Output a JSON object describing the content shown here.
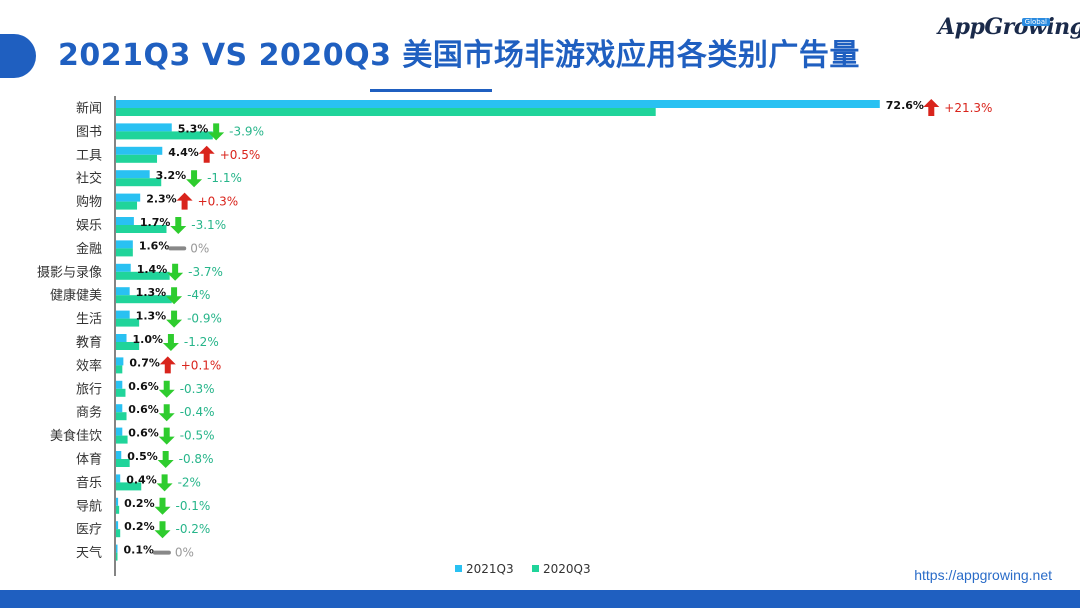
{
  "header": {
    "title": "2021Q3 VS 2020Q3 美国市场非游戏应用各类别广告量",
    "logo_text": "AppGrowing",
    "logo_badge": "Global"
  },
  "footer": {
    "url": "https://appgrowing.net"
  },
  "colors": {
    "accent": "#1f5fc0",
    "series_2021": "#29c1f2",
    "series_2020": "#20d49a",
    "up": "#d9241c",
    "down": "#2ecc2e",
    "flat": "#888888"
  },
  "chart_data": {
    "type": "bar",
    "orientation": "horizontal",
    "title": "2021Q3 VS 2020Q3 美国市场非游戏应用各类别广告量",
    "xlim": [
      0,
      73
    ],
    "legend": "bottom-center",
    "grid": false,
    "categories": [
      "新闻",
      "图书",
      "工具",
      "社交",
      "购物",
      "娱乐",
      "金融",
      "摄影与录像",
      "健康健美",
      "生活",
      "教育",
      "效率",
      "旅行",
      "商务",
      "美食佳饮",
      "体育",
      "音乐",
      "导航",
      "医疗",
      "天气"
    ],
    "series": [
      {
        "name": "2021Q3",
        "values": [
          72.6,
          5.3,
          4.4,
          3.2,
          2.3,
          1.7,
          1.6,
          1.4,
          1.3,
          1.3,
          1.0,
          0.7,
          0.6,
          0.6,
          0.6,
          0.5,
          0.4,
          0.2,
          0.2,
          0.1
        ]
      },
      {
        "name": "2020Q3",
        "values": [
          51.3,
          9.2,
          3.9,
          4.3,
          2.0,
          4.8,
          1.6,
          5.1,
          5.3,
          2.2,
          2.2,
          0.6,
          0.9,
          1.0,
          1.1,
          1.3,
          2.4,
          0.3,
          0.4,
          0.1
        ]
      }
    ],
    "value_labels": [
      "72.6%",
      "5.3%",
      "4.4%",
      "3.2%",
      "2.3%",
      "1.7%",
      "1.6%",
      "1.4%",
      "1.3%",
      "1.3%",
      "1.0%",
      "0.7%",
      "0.6%",
      "0.6%",
      "0.6%",
      "0.5%",
      "0.4%",
      "0.2%",
      "0.2%",
      "0.1%"
    ],
    "change_labels": [
      "+21.3%",
      "-3.9%",
      "+0.5%",
      "-1.1%",
      "+0.3%",
      "-3.1%",
      "0%",
      "-3.7%",
      "-4%",
      "-0.9%",
      "-1.2%",
      "+0.1%",
      "-0.3%",
      "-0.4%",
      "-0.5%",
      "-0.8%",
      "-2%",
      "-0.1%",
      "-0.2%",
      "0%"
    ],
    "change_direction": [
      "up",
      "down",
      "up",
      "down",
      "up",
      "down",
      "flat",
      "down",
      "down",
      "down",
      "down",
      "up",
      "down",
      "down",
      "down",
      "down",
      "down",
      "down",
      "down",
      "flat"
    ]
  }
}
